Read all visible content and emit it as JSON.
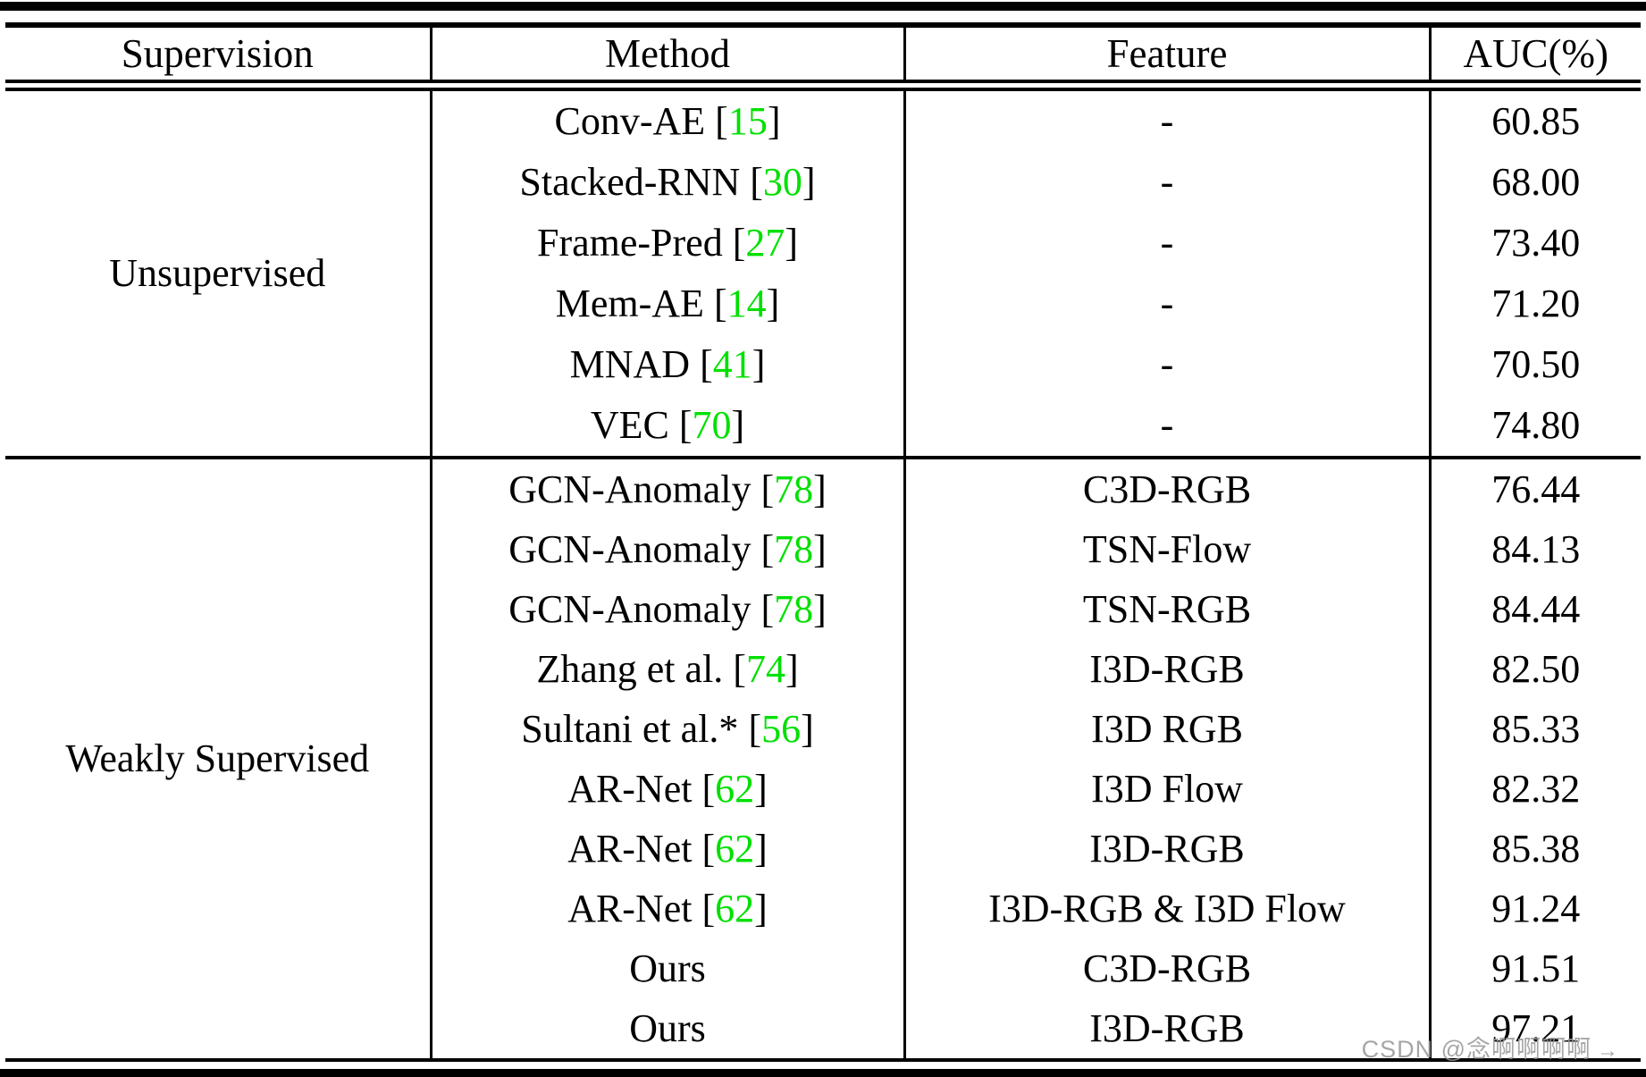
{
  "table": {
    "headers": [
      "Supervision",
      "Method",
      "Feature",
      "AUC(%)"
    ],
    "citation_brackets": [
      "[",
      "]"
    ],
    "colors": {
      "citation_green": "#00e000",
      "best_blue": "#0808ee",
      "best_red": "#ee0000",
      "rule_black": "#000000"
    },
    "groups": [
      {
        "supervision": "Unsupervised",
        "rows": [
          {
            "method": "Conv-AE",
            "cite": "15",
            "feature": "-",
            "auc": "60.85",
            "auc_color": "normal"
          },
          {
            "method": "Stacked-RNN",
            "cite": "30",
            "feature": "-",
            "auc": "68.00",
            "auc_color": "normal"
          },
          {
            "method": "Frame-Pred",
            "cite": "27",
            "feature": "-",
            "auc": "73.40",
            "auc_color": "normal"
          },
          {
            "method": "Mem-AE",
            "cite": "14",
            "feature": "-",
            "auc": "71.20",
            "auc_color": "normal"
          },
          {
            "method": "MNAD",
            "cite": "41",
            "feature": "-",
            "auc": "70.50",
            "auc_color": "normal"
          },
          {
            "method": "VEC",
            "cite": "70",
            "feature": "-",
            "auc": "74.80",
            "auc_color": "normal"
          }
        ]
      },
      {
        "supervision": "Weakly Supervised",
        "rows": [
          {
            "method": "GCN-Anomaly",
            "cite": "78",
            "feature": "C3D-RGB",
            "auc": "76.44",
            "auc_color": "normal"
          },
          {
            "method": "GCN-Anomaly",
            "cite": "78",
            "feature": "TSN-Flow",
            "auc": "84.13",
            "auc_color": "normal"
          },
          {
            "method": "GCN-Anomaly",
            "cite": "78",
            "feature": "TSN-RGB",
            "auc": "84.44",
            "auc_color": "normal"
          },
          {
            "method": "Zhang et al.",
            "cite": "74",
            "feature": "I3D-RGB",
            "auc": "82.50",
            "auc_color": "normal"
          },
          {
            "method": "Sultani et al.*",
            "cite": "56",
            "feature": "I3D RGB",
            "auc": "85.33",
            "auc_color": "normal"
          },
          {
            "method": "AR-Net",
            "cite": "62",
            "feature": "I3D Flow",
            "auc": "82.32",
            "auc_color": "normal"
          },
          {
            "method": "AR-Net",
            "cite": "62",
            "feature": "I3D-RGB",
            "auc": "85.38",
            "auc_color": "normal"
          },
          {
            "method": "AR-Net",
            "cite": "62",
            "feature": "I3D-RGB & I3D Flow",
            "auc": "91.24",
            "auc_color": "normal"
          },
          {
            "method": "Ours",
            "cite": null,
            "feature": "C3D-RGB",
            "auc": "91.51",
            "auc_color": "blue"
          },
          {
            "method": "Ours",
            "cite": null,
            "feature": "I3D-RGB",
            "auc": "97.21",
            "auc_color": "red"
          }
        ]
      }
    ]
  },
  "watermark": {
    "text": "CSDN @念啊啊啊啊",
    "arrow": "→"
  }
}
